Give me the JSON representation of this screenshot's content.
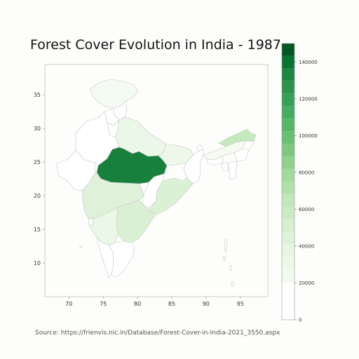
{
  "title": "Forest Cover Evolution in India - 1987",
  "source_text": "Source: https://frienvis.nic.in/Database/Forest-Cover-in-India-2021_3550.aspx",
  "map": {
    "x_ticks": [
      70,
      75,
      80,
      85,
      90,
      95
    ],
    "y_ticks": [
      10,
      15,
      20,
      25,
      30,
      35
    ],
    "lon_range": [
      66.5,
      99.0
    ],
    "lat_range": [
      5.0,
      39.5
    ]
  },
  "colorbar": {
    "min": 0,
    "max": 150000,
    "ticks": [
      0,
      20000,
      40000,
      60000,
      80000,
      100000,
      120000,
      140000
    ],
    "palette": "Greens",
    "color_low": "#ffffff",
    "color_high": "#00441b"
  },
  "regions": [
    {
      "name": "Jammu & Kashmir",
      "value": 20500
    },
    {
      "name": "Himachal Pradesh",
      "value": 0
    },
    {
      "name": "Punjab",
      "value": 0
    },
    {
      "name": "Haryana",
      "value": 0
    },
    {
      "name": "Uttar Pradesh",
      "value": 32000
    },
    {
      "name": "Rajasthan",
      "value": 0
    },
    {
      "name": "Gujarat",
      "value": 0
    },
    {
      "name": "Madhya Pradesh",
      "value": 135000
    },
    {
      "name": "Bihar",
      "value": 29000
    },
    {
      "name": "West Bengal",
      "value": 0
    },
    {
      "name": "Odisha",
      "value": 47500
    },
    {
      "name": "Maharashtra",
      "value": 44000
    },
    {
      "name": "Andhra Pradesh",
      "value": 48000
    },
    {
      "name": "Karnataka",
      "value": 32000
    },
    {
      "name": "Goa",
      "value": 0
    },
    {
      "name": "Kerala",
      "value": 0
    },
    {
      "name": "Tamil Nadu",
      "value": 0
    },
    {
      "name": "Arunachal Pradesh",
      "value": 62000
    },
    {
      "name": "Assam",
      "value": 21000
    },
    {
      "name": "Meghalaya",
      "value": 0
    },
    {
      "name": "Nagaland",
      "value": 0
    },
    {
      "name": "Manipur",
      "value": 0
    },
    {
      "name": "Mizoram",
      "value": 0
    },
    {
      "name": "Tripura",
      "value": 0
    },
    {
      "name": "Sikkim",
      "value": 0
    },
    {
      "name": "Andaman & Nicobar",
      "value": 0
    }
  ]
}
